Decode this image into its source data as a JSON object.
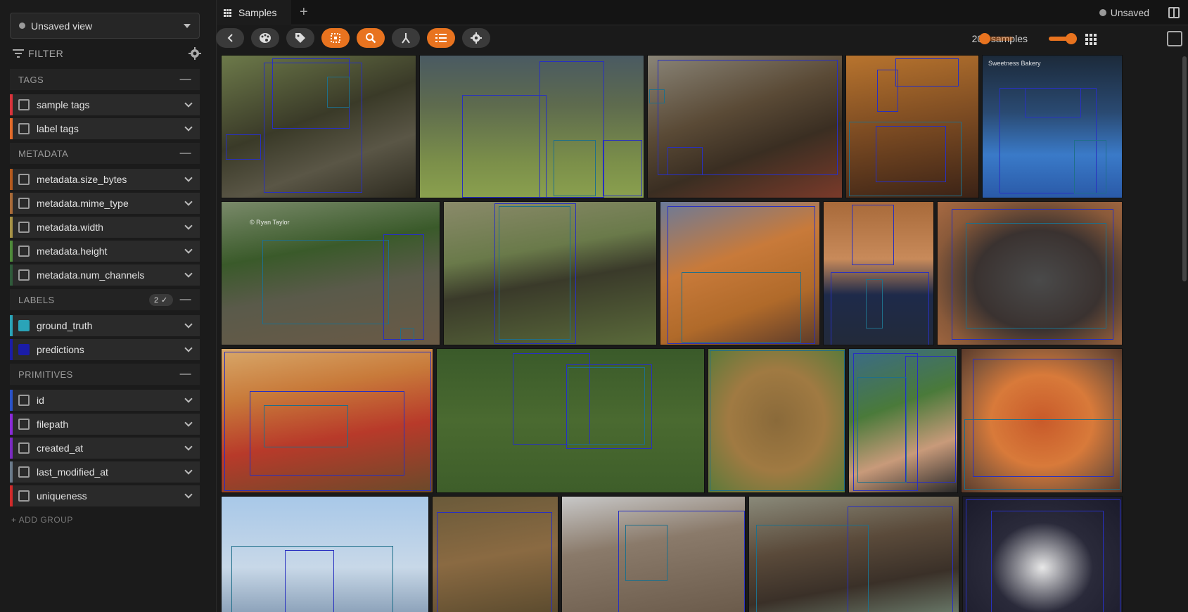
{
  "sidebar": {
    "view_name": "Unsaved view",
    "filter_label": "FILTER",
    "add_group": "+ ADD GROUP",
    "groups": {
      "tags": "TAGS",
      "metadata": "METADATA",
      "labels": "LABELS",
      "labels_badge": "2 ✓",
      "primitives": "PRIMITIVES"
    },
    "rows": [
      {
        "label": "sample tags",
        "color": "#d8333b",
        "checked": false
      },
      {
        "label": "label tags",
        "color": "#e26a2a",
        "checked": false
      },
      {
        "label": "metadata.size_bytes",
        "color": "#b45a1e",
        "checked": false
      },
      {
        "label": "metadata.mime_type",
        "color": "#a86a38",
        "checked": false
      },
      {
        "label": "metadata.width",
        "color": "#a69246",
        "checked": false
      },
      {
        "label": "metadata.height",
        "color": "#4e8a3a",
        "checked": false
      },
      {
        "label": "metadata.num_channels",
        "color": "#2f5a3a",
        "checked": false
      },
      {
        "label": "ground_truth",
        "color": "#2aa4b8",
        "checked": true
      },
      {
        "label": "predictions",
        "color": "#1a1ca8",
        "checked": true
      },
      {
        "label": "id",
        "color": "#2a52c8",
        "checked": false
      },
      {
        "label": "filepath",
        "color": "#8a2ad8",
        "checked": false
      },
      {
        "label": "created_at",
        "color": "#7a2ac0",
        "checked": false
      },
      {
        "label": "last_modified_at",
        "color": "#6a7a8a",
        "checked": false
      },
      {
        "label": "uniqueness",
        "color": "#d02a2a",
        "checked": false
      }
    ]
  },
  "topbar": {
    "tab_label": "Samples",
    "add_tab": "+",
    "status": "Unsaved"
  },
  "toolbar": {
    "sample_count": "200 samples",
    "buttons": [
      "back-icon",
      "palette-icon",
      "tag-icon",
      "patches-icon",
      "search-icon",
      "merge-icon",
      "list-icon",
      "gear-icon"
    ]
  },
  "grid": {
    "captions": {
      "train": "© Ryan Taylor",
      "cake": "Sweetness Bakery"
    },
    "colors": {
      "ground_truth": "#1f6f8a",
      "predictions": "#2830c0"
    }
  }
}
